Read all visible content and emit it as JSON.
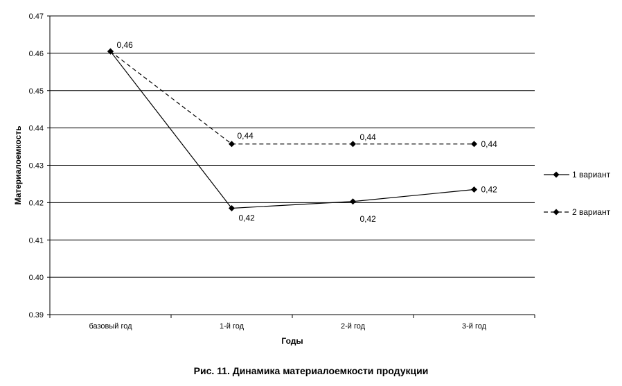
{
  "chart_data": {
    "type": "line",
    "categories": [
      "базовый год",
      "1-й год",
      "2-й год",
      "3-й год"
    ],
    "ylabel": "Материалоемкость",
    "xlabel": "Годы",
    "ylim": [
      0.39,
      0.47
    ],
    "yticks": [
      "0.39",
      "0.40",
      "0.41",
      "0.42",
      "0.43",
      "0.44",
      "0.45",
      "0.46",
      "0.47"
    ],
    "grid": true,
    "legend_position": "right",
    "series": [
      {
        "name": "1 вариант",
        "style": "solid",
        "values": [
          0.4605,
          0.4185,
          0.4203,
          0.4235
        ],
        "labels": [
          "0,46",
          "0,42",
          "0,42",
          "0,42"
        ]
      },
      {
        "name": "2 вариант",
        "style": "dashed",
        "values": [
          0.4605,
          0.4357,
          0.4357,
          0.4357
        ],
        "labels": [
          "",
          "0,44",
          "0,44",
          "0,44"
        ]
      }
    ]
  },
  "caption": "Рис. 11. Динамика материалоемкости продукции"
}
